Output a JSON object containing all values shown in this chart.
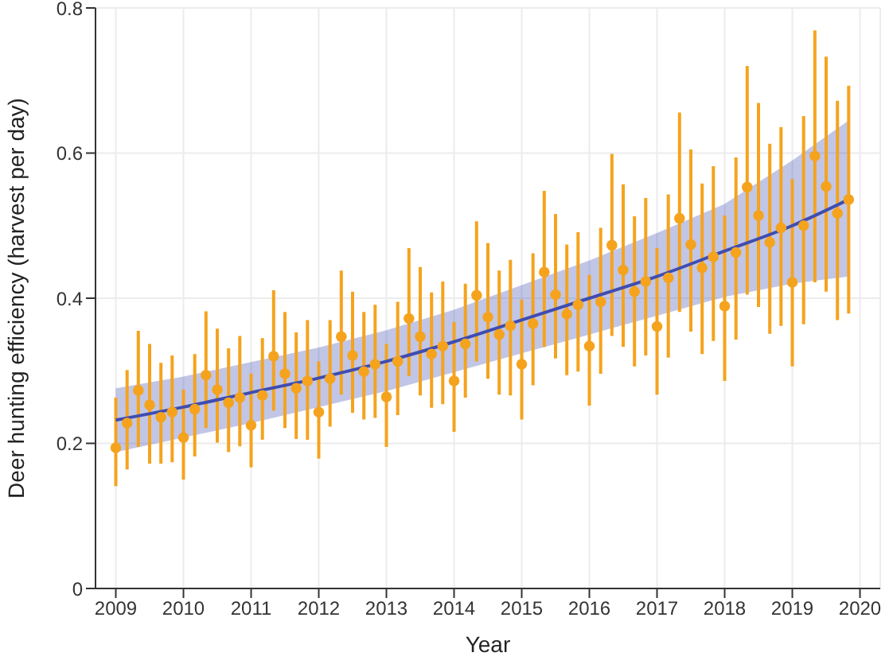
{
  "chart_data": {
    "type": "scatter",
    "xlabel": "Year",
    "ylabel": "Deer hunting efficiency (harvest per day)",
    "xlim": [
      2008.7,
      2020.3
    ],
    "xticks": [
      2009,
      2010,
      2011,
      2012,
      2013,
      2014,
      2015,
      2016,
      2017,
      2018,
      2019,
      2020
    ],
    "ylim": [
      0,
      0.8
    ],
    "yticks": [
      0,
      0.2,
      0.4,
      0.6,
      0.8
    ],
    "grid": true,
    "legend": false,
    "x": [
      2009,
      2009.167,
      2009.333,
      2009.5,
      2009.667,
      2009.833,
      2010,
      2010.167,
      2010.333,
      2010.5,
      2010.667,
      2010.833,
      2011,
      2011.167,
      2011.333,
      2011.5,
      2011.667,
      2011.833,
      2012,
      2012.167,
      2012.333,
      2012.5,
      2012.667,
      2012.833,
      2013,
      2013.167,
      2013.333,
      2013.5,
      2013.667,
      2013.833,
      2014,
      2014.167,
      2014.333,
      2014.5,
      2014.667,
      2014.833,
      2015,
      2015.167,
      2015.333,
      2015.5,
      2015.667,
      2015.833,
      2016,
      2016.167,
      2016.333,
      2016.5,
      2016.667,
      2016.833,
      2017,
      2017.167,
      2017.333,
      2017.5,
      2017.667,
      2017.833,
      2018,
      2018.167,
      2018.333,
      2018.5,
      2018.667,
      2018.833,
      2019,
      2019.167,
      2019.333,
      2019.5,
      2019.667,
      2019.833
    ],
    "series": [
      {
        "marker": "circle",
        "color": "#f5a31d",
        "values": [
          0.194,
          0.228,
          0.273,
          0.253,
          0.236,
          0.243,
          0.208,
          0.247,
          0.294,
          0.274,
          0.256,
          0.263,
          0.225,
          0.266,
          0.32,
          0.296,
          0.276,
          0.286,
          0.243,
          0.289,
          0.347,
          0.321,
          0.299,
          0.309,
          0.264,
          0.313,
          0.372,
          0.347,
          0.323,
          0.334,
          0.286,
          0.337,
          0.404,
          0.374,
          0.35,
          0.362,
          0.309,
          0.365,
          0.436,
          0.405,
          0.378,
          0.391,
          0.334,
          0.395,
          0.473,
          0.439,
          0.409,
          0.423,
          0.361,
          0.428,
          0.51,
          0.474,
          0.442,
          0.457,
          0.389,
          0.463,
          0.553,
          0.514,
          0.477,
          0.497,
          0.422,
          0.5,
          0.596,
          0.554,
          0.517,
          0.536
        ],
        "errors": [
          [
            0.141,
            0.263
          ],
          [
            0.164,
            0.301
          ],
          [
            0.195,
            0.355
          ],
          [
            0.172,
            0.337
          ],
          [
            0.172,
            0.311
          ],
          [
            0.174,
            0.321
          ],
          [
            0.15,
            0.274
          ],
          [
            0.182,
            0.323
          ],
          [
            0.221,
            0.382
          ],
          [
            0.201,
            0.358
          ],
          [
            0.188,
            0.331
          ],
          [
            0.196,
            0.348
          ],
          [
            0.167,
            0.296
          ],
          [
            0.205,
            0.345
          ],
          [
            0.245,
            0.411
          ],
          [
            0.221,
            0.381
          ],
          [
            0.206,
            0.353
          ],
          [
            0.205,
            0.37
          ],
          [
            0.179,
            0.313
          ],
          [
            0.223,
            0.37
          ],
          [
            0.267,
            0.438
          ],
          [
            0.242,
            0.409
          ],
          [
            0.233,
            0.381
          ],
          [
            0.235,
            0.391
          ],
          [
            0.195,
            0.337
          ],
          [
            0.239,
            0.395
          ],
          [
            0.293,
            0.469
          ],
          [
            0.266,
            0.443
          ],
          [
            0.249,
            0.408
          ],
          [
            0.254,
            0.423
          ],
          [
            0.216,
            0.367
          ],
          [
            0.263,
            0.42
          ],
          [
            0.313,
            0.506
          ],
          [
            0.289,
            0.476
          ],
          [
            0.267,
            0.438
          ],
          [
            0.266,
            0.453
          ],
          [
            0.233,
            0.398
          ],
          [
            0.28,
            0.462
          ],
          [
            0.333,
            0.548
          ],
          [
            0.317,
            0.516
          ],
          [
            0.294,
            0.474
          ],
          [
            0.299,
            0.491
          ],
          [
            0.252,
            0.432
          ],
          [
            0.296,
            0.497
          ],
          [
            0.348,
            0.599
          ],
          [
            0.333,
            0.557
          ],
          [
            0.306,
            0.513
          ],
          [
            0.321,
            0.538
          ],
          [
            0.267,
            0.469
          ],
          [
            0.318,
            0.543
          ],
          [
            0.381,
            0.656
          ],
          [
            0.354,
            0.605
          ],
          [
            0.323,
            0.558
          ],
          [
            0.341,
            0.582
          ],
          [
            0.286,
            0.514
          ],
          [
            0.343,
            0.594
          ],
          [
            0.405,
            0.72
          ],
          [
            0.388,
            0.669
          ],
          [
            0.351,
            0.613
          ],
          [
            0.362,
            0.636
          ],
          [
            0.306,
            0.564
          ],
          [
            0.364,
            0.651
          ],
          [
            0.422,
            0.769
          ],
          [
            0.409,
            0.733
          ],
          [
            0.37,
            0.672
          ],
          [
            0.379,
            0.693
          ]
        ]
      },
      {
        "type": "line",
        "marker": "none",
        "color": "#3f4db0",
        "x": [
          2009,
          2010,
          2011,
          2012,
          2013,
          2014,
          2015,
          2016,
          2017,
          2018,
          2019,
          2019.833
        ],
        "values": [
          0.232,
          0.25,
          0.27,
          0.29,
          0.313,
          0.34,
          0.37,
          0.4,
          0.43,
          0.465,
          0.5,
          0.536
        ],
        "lower": [
          0.188,
          0.208,
          0.228,
          0.25,
          0.272,
          0.298,
          0.324,
          0.35,
          0.376,
          0.402,
          0.42,
          0.43
        ],
        "upper": [
          0.276,
          0.292,
          0.312,
          0.332,
          0.356,
          0.384,
          0.418,
          0.452,
          0.49,
          0.53,
          0.59,
          0.645
        ]
      }
    ]
  }
}
